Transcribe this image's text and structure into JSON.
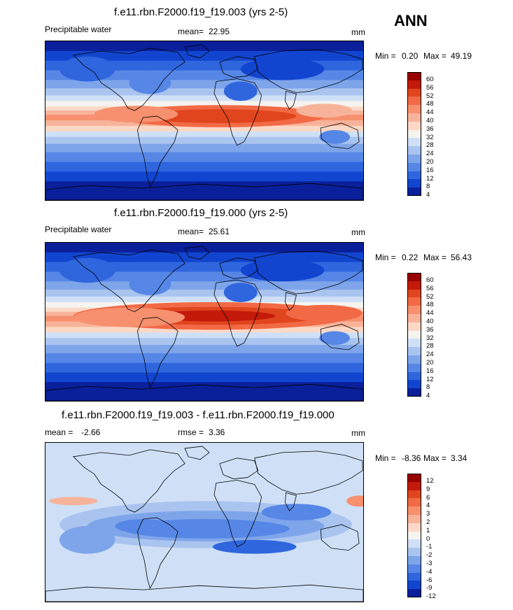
{
  "season": "ANN",
  "chart_data": [
    {
      "type": "contour map",
      "title": "f.e11.rbn.F2000.f19_f19.003 (yrs 2-5)",
      "left_label": "Precipitable water",
      "mean_label": "mean=",
      "mean_value": "22.95",
      "units": "mm",
      "min_label": "Min =",
      "min_value": "0.20",
      "max_label": "Max =",
      "max_value": "49.19",
      "levels": [
        "60",
        "56",
        "52",
        "48",
        "44",
        "40",
        "36",
        "32",
        "28",
        "24",
        "20",
        "16",
        "12",
        "8",
        "4"
      ],
      "colors": [
        "#990000",
        "#c41a0a",
        "#e0451e",
        "#f26a45",
        "#f6906e",
        "#f7b39a",
        "#fbd8c6",
        "#f5f3ee",
        "#cfe0f6",
        "#a9c4ef",
        "#7ea5ea",
        "#5687e6",
        "#2f66de",
        "#1245cf",
        "#0a1f9a"
      ]
    },
    {
      "type": "contour map",
      "title": "f.e11.rbn.F2000.f19_f19.000 (yrs 2-5)",
      "left_label": "Precipitable water",
      "mean_label": "mean=",
      "mean_value": "25.61",
      "units": "mm",
      "min_label": "Min =",
      "min_value": "0.22",
      "max_label": "Max =",
      "max_value": "56.43",
      "levels": [
        "60",
        "56",
        "52",
        "48",
        "44",
        "40",
        "36",
        "32",
        "28",
        "24",
        "20",
        "16",
        "12",
        "8",
        "4"
      ],
      "colors": [
        "#990000",
        "#c41a0a",
        "#e0451e",
        "#f26a45",
        "#f6906e",
        "#f7b39a",
        "#fbd8c6",
        "#f5f3ee",
        "#cfe0f6",
        "#a9c4ef",
        "#7ea5ea",
        "#5687e6",
        "#2f66de",
        "#1245cf",
        "#0a1f9a"
      ]
    },
    {
      "type": "contour map",
      "title": "f.e11.rbn.F2000.f19_f19.003 - f.e11.rbn.F2000.f19_f19.000",
      "left_label": "mean =",
      "mean_label": "rmse =",
      "left_value": "-2.66",
      "mean_value": "3.36",
      "units": "mm",
      "min_label": "Min =",
      "min_value": "-8.36",
      "max_label": "Max =",
      "max_value": "3.34",
      "levels": [
        "12",
        "9",
        "6",
        "4",
        "3",
        "2",
        "1",
        "0",
        "-1",
        "-2",
        "-3",
        "-4",
        "-6",
        "-9",
        "-12"
      ],
      "colors": [
        "#990000",
        "#c41a0a",
        "#e0451e",
        "#f26a45",
        "#f6906e",
        "#f7b39a",
        "#fbd8c6",
        "#f5f3ee",
        "#cfe0f6",
        "#a9c4ef",
        "#7ea5ea",
        "#5687e6",
        "#2f66de",
        "#1245cf",
        "#0a1f9a"
      ]
    }
  ]
}
